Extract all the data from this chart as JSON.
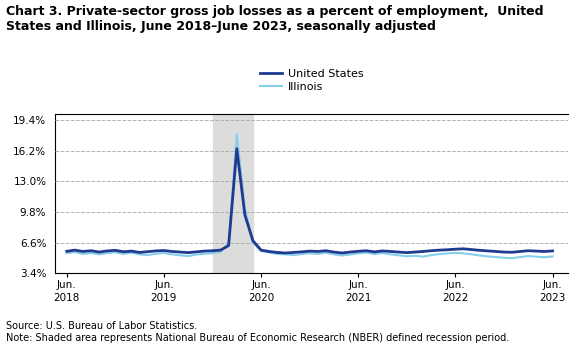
{
  "title_line1": "Chart 3. Private-sector gross job losses as a percent of employment,  United",
  "title_line2": "States and Illinois, June 2018–June 2023, seasonally adjusted",
  "source_text": "Source: U.S. Bureau of Labor Statistics.\nNote: Shaded area represents National Bureau of Economic Research (NBER) defined recession period.",
  "recession_start": 2019.917,
  "recession_end": 2020.333,
  "ylim": [
    3.4,
    20.0
  ],
  "yticks": [
    3.4,
    6.6,
    9.8,
    13.0,
    16.2,
    19.4
  ],
  "ytick_labels": [
    "3.4%",
    "6.6%",
    "9.8%",
    "13.0%",
    "16.2%",
    "19.4%"
  ],
  "xticks": [
    2018.417,
    2019.417,
    2020.417,
    2021.417,
    2022.417,
    2023.417
  ],
  "xtick_labels": [
    "Jun.\n2018",
    "Jun.\n2019",
    "Jun.\n2020",
    "Jun.\n2021",
    "Jun.\n2022",
    "Jun.\n2023"
  ],
  "us_color": "#1F3A8F",
  "il_color": "#87CEEB",
  "recession_color": "#DCDCDC",
  "us_data": {
    "dates": [
      2018.417,
      2018.5,
      2018.583,
      2018.667,
      2018.75,
      2018.833,
      2018.917,
      2019.0,
      2019.083,
      2019.167,
      2019.25,
      2019.333,
      2019.417,
      2019.5,
      2019.583,
      2019.667,
      2019.75,
      2019.833,
      2019.917,
      2020.0,
      2020.083,
      2020.167,
      2020.25,
      2020.333,
      2020.417,
      2020.5,
      2020.583,
      2020.667,
      2020.75,
      2020.833,
      2020.917,
      2021.0,
      2021.083,
      2021.167,
      2021.25,
      2021.333,
      2021.417,
      2021.5,
      2021.583,
      2021.667,
      2021.75,
      2021.833,
      2021.917,
      2022.0,
      2022.083,
      2022.167,
      2022.25,
      2022.333,
      2022.417,
      2022.5,
      2022.583,
      2022.667,
      2022.75,
      2022.833,
      2022.917,
      2023.0,
      2023.083,
      2023.167,
      2023.25,
      2023.333,
      2023.417
    ],
    "values": [
      5.7,
      5.82,
      5.68,
      5.76,
      5.62,
      5.74,
      5.8,
      5.65,
      5.72,
      5.58,
      5.66,
      5.74,
      5.78,
      5.68,
      5.62,
      5.56,
      5.64,
      5.72,
      5.76,
      5.82,
      6.3,
      16.4,
      9.5,
      6.8,
      5.82,
      5.68,
      5.58,
      5.52,
      5.58,
      5.64,
      5.72,
      5.68,
      5.76,
      5.62,
      5.52,
      5.62,
      5.7,
      5.76,
      5.64,
      5.74,
      5.68,
      5.62,
      5.56,
      5.62,
      5.68,
      5.76,
      5.82,
      5.86,
      5.92,
      5.96,
      5.88,
      5.8,
      5.74,
      5.68,
      5.62,
      5.6,
      5.68,
      5.76,
      5.72,
      5.68,
      5.74
    ]
  },
  "il_data": {
    "dates": [
      2018.417,
      2018.5,
      2018.583,
      2018.667,
      2018.75,
      2018.833,
      2018.917,
      2019.0,
      2019.083,
      2019.167,
      2019.25,
      2019.333,
      2019.417,
      2019.5,
      2019.583,
      2019.667,
      2019.75,
      2019.833,
      2019.917,
      2020.0,
      2020.083,
      2020.167,
      2020.25,
      2020.333,
      2020.417,
      2020.5,
      2020.583,
      2020.667,
      2020.75,
      2020.833,
      2020.917,
      2021.0,
      2021.083,
      2021.167,
      2021.25,
      2021.333,
      2021.417,
      2021.5,
      2021.583,
      2021.667,
      2021.75,
      2021.833,
      2021.917,
      2022.0,
      2022.083,
      2022.167,
      2022.25,
      2022.333,
      2022.417,
      2022.5,
      2022.583,
      2022.667,
      2022.75,
      2022.833,
      2022.917,
      2023.0,
      2023.083,
      2023.167,
      2023.25,
      2023.333,
      2023.417
    ],
    "values": [
      5.5,
      5.62,
      5.42,
      5.52,
      5.38,
      5.5,
      5.6,
      5.42,
      5.55,
      5.38,
      5.3,
      5.44,
      5.52,
      5.38,
      5.28,
      5.2,
      5.36,
      5.44,
      5.5,
      5.6,
      6.6,
      17.9,
      10.2,
      6.6,
      5.72,
      5.58,
      5.42,
      5.38,
      5.3,
      5.4,
      5.5,
      5.42,
      5.55,
      5.38,
      5.26,
      5.36,
      5.48,
      5.56,
      5.4,
      5.52,
      5.38,
      5.28,
      5.18,
      5.22,
      5.14,
      5.3,
      5.4,
      5.48,
      5.54,
      5.48,
      5.38,
      5.26,
      5.16,
      5.1,
      5.02,
      4.98,
      5.1,
      5.2,
      5.14,
      5.08,
      5.16
    ]
  }
}
